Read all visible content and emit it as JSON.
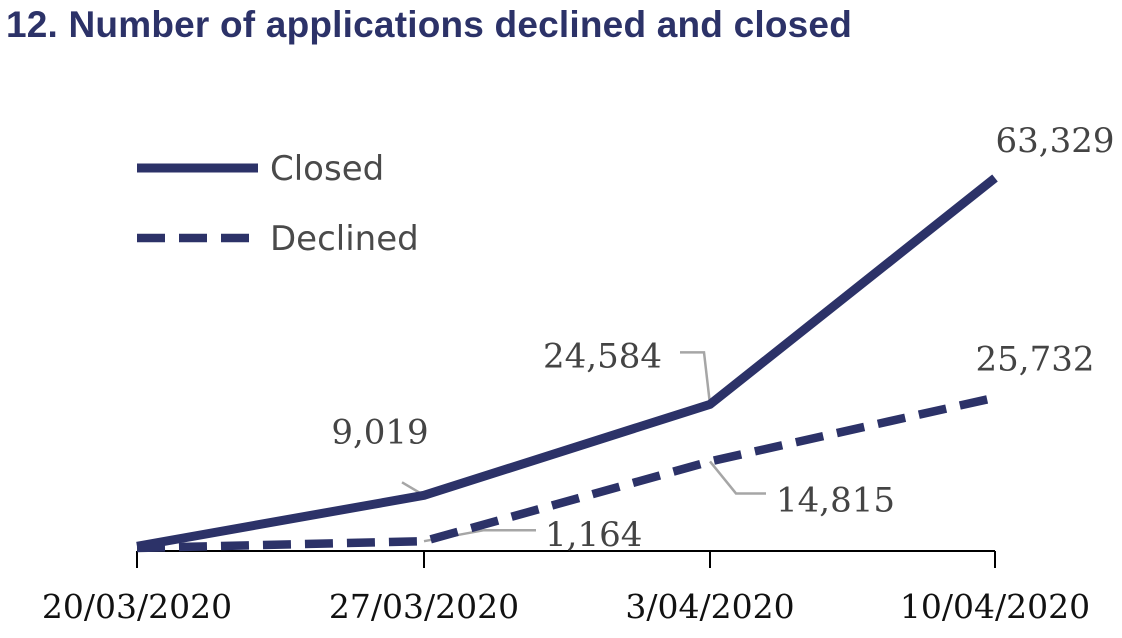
{
  "chart_data": {
    "type": "line",
    "title": "12. Number of applications declined and closed",
    "x": [
      "20/03/2020",
      "27/03/2020",
      "3/04/2020",
      "10/04/2020"
    ],
    "series": [
      {
        "name": "Closed",
        "values": [
          300,
          9019,
          24584,
          63329
        ],
        "labels": [
          "",
          "9,019",
          "24,584",
          "63,329"
        ],
        "style": "solid",
        "color": "#2c3268"
      },
      {
        "name": "Declined",
        "values": [
          0,
          1164,
          14815,
          25732
        ],
        "labels": [
          "",
          "1,164",
          "14,815",
          "25,732"
        ],
        "style": "dashed",
        "color": "#2c3268"
      }
    ],
    "ylim": [
      0,
      63329
    ],
    "grid": false,
    "legend": "top-left",
    "leader_color": "#a6a6a6"
  }
}
